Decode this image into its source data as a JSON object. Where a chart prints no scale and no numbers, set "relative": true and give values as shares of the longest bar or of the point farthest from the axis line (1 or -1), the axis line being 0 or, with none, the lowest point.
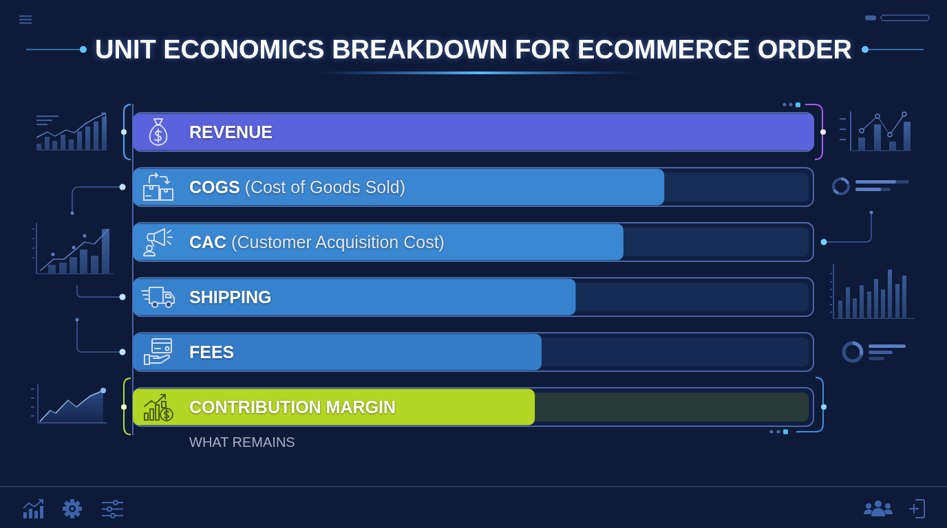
{
  "chart_data": {
    "type": "bar",
    "orientation": "horizontal",
    "relative": true,
    "title": "UNIT ECONOMICS BREAKDOWN FOR ECOMMERCE ORDER",
    "categories": [
      "REVENUE",
      "COGS (Cost of Goods Sold)",
      "CAC (Customer Acquisition Cost)",
      "SHIPPING",
      "FEES",
      "CONTRIBUTION MARGIN"
    ],
    "values": [
      1,
      0.78,
      0.72,
      0.65,
      0.6,
      0.59
    ],
    "colors": [
      "#5b63dc",
      "#3b86d1",
      "#3a88d2",
      "#3782cc",
      "#357cc6",
      "#b4d624"
    ],
    "annotations": [
      "WHAT REMAINS"
    ]
  }
}
